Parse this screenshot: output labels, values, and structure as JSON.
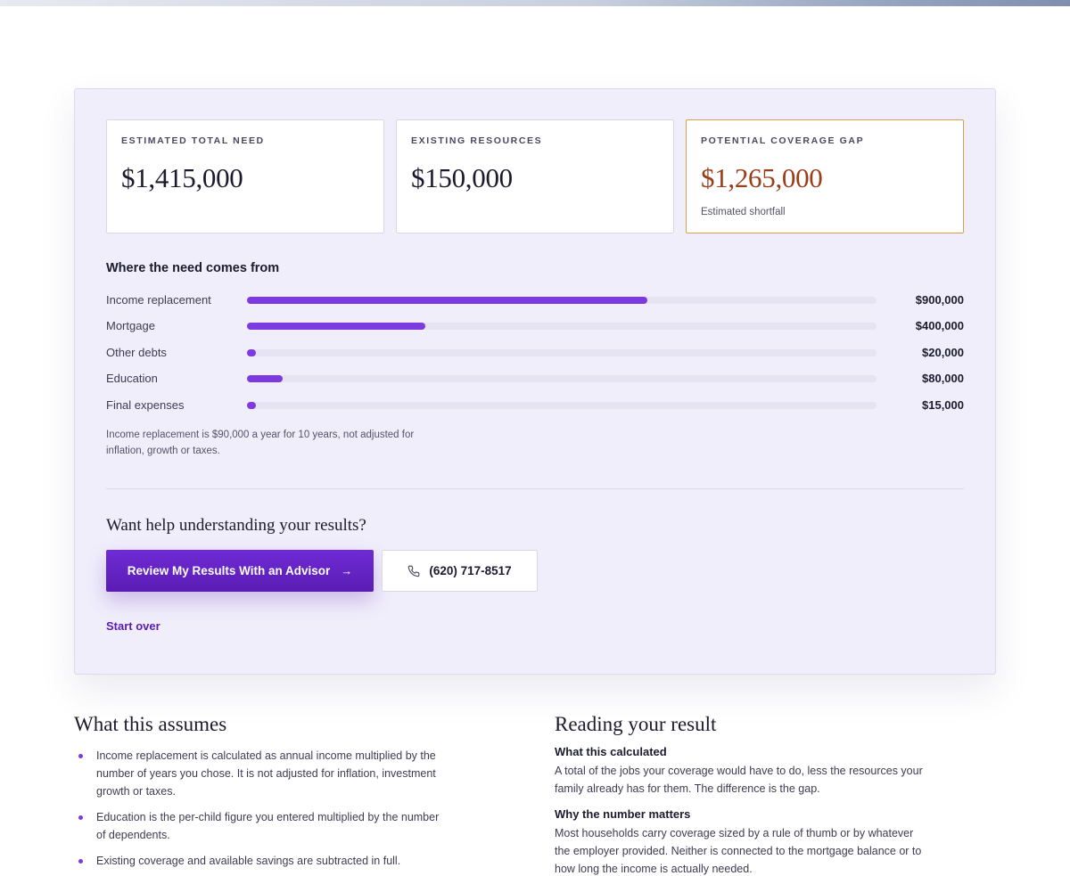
{
  "stats": [
    {
      "label": "ESTIMATED TOTAL NEED",
      "value": "$1,415,000",
      "note": ""
    },
    {
      "label": "EXISTING RESOURCES",
      "value": "$150,000",
      "note": ""
    },
    {
      "label": "POTENTIAL COVERAGE GAP",
      "value": "$1,265,000",
      "note": "Estimated shortfall"
    }
  ],
  "breakdown": {
    "title": "Where the need comes from",
    "items": [
      {
        "label": "Income replacement",
        "value": "$900,000",
        "amount": 900000
      },
      {
        "label": "Mortgage",
        "value": "$400,000",
        "amount": 400000
      },
      {
        "label": "Other debts",
        "value": "$20,000",
        "amount": 20000
      },
      {
        "label": "Education",
        "value": "$80,000",
        "amount": 80000
      },
      {
        "label": "Final expenses",
        "value": "$15,000",
        "amount": 15000
      }
    ],
    "scale_max": 1415000,
    "footnote": "Income replacement is $90,000 a year for 10 years, not adjusted for inflation, growth or taxes."
  },
  "help": {
    "heading": "Want help understanding your results?",
    "advisor_label": "Review My Results With an Advisor",
    "advisor_icon": "arrow-right-icon",
    "phone": "(620) 717-8517",
    "phone_icon": "phone-icon",
    "start_over": "Start over"
  },
  "assumes": {
    "heading": "What this assumes",
    "items": [
      "Income replacement is calculated as annual income multiplied by the number of years you chose. It is not adjusted for inflation, investment growth or taxes.",
      "Education is the per-child figure you entered multiplied by the number of dependents.",
      "Existing coverage and available savings are subtracted in full."
    ]
  },
  "reading": {
    "heading": "Reading your result",
    "blocks": [
      {
        "title": "What this calculated",
        "text": "A total of the jobs your coverage would have to do, less the resources your family already has for them. The difference is the gap."
      },
      {
        "title": "Why the number matters",
        "text": "Most households carry coverage sized by a rule of thumb or by whatever the employer provided. Neither is connected to the mortgage balance or to how long the income is actually needed."
      }
    ]
  },
  "colors": {
    "accent": "#7c3ae0",
    "button": "#5a1cb3",
    "gap_value": "#9a3d18",
    "gap_border": "#d4a04a"
  }
}
